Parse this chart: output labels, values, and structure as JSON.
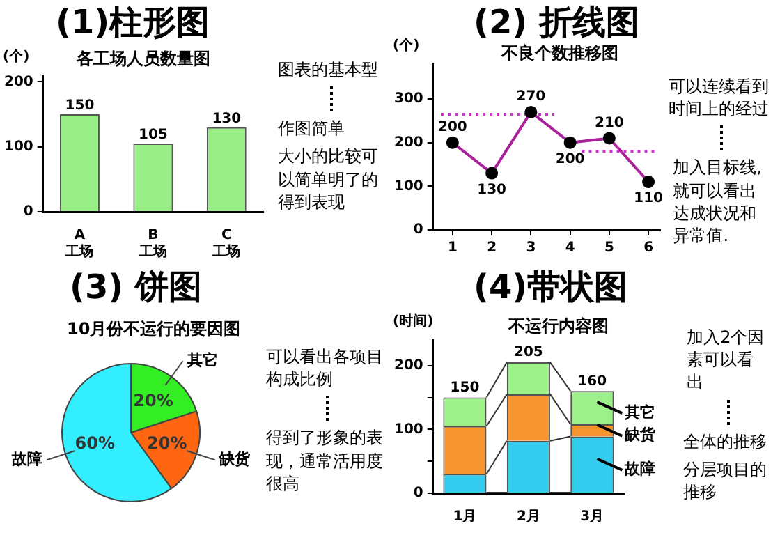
{
  "chart_data": [
    {
      "type": "bar",
      "title": "(1)柱形图",
      "subtitle": "各工场人员数量图",
      "ylabel": "(个)",
      "categories": [
        "A\n工场",
        "B\n工场",
        "C\n工场"
      ],
      "values": [
        150,
        105,
        130
      ],
      "color": "#99ee88",
      "ylim": [
        0,
        210
      ],
      "yticks": [
        0,
        100,
        200
      ],
      "data_labels": true,
      "annotations": [
        "图表的基本型",
        "作图简单",
        "大小的比较可以简单明了的得到表现"
      ]
    },
    {
      "type": "line",
      "title": "(2) 折线图",
      "subtitle": "不良个数推移图",
      "ylabel": "(个)",
      "xlim": [
        0.5,
        6.3
      ],
      "xticks": [
        1,
        2,
        3,
        4,
        5,
        6
      ],
      "ylim": [
        0,
        380
      ],
      "yticks": [
        0,
        100,
        200,
        300
      ],
      "series": [
        {
          "color": "#aa2299",
          "x": [
            1,
            2,
            3,
            4,
            5,
            6
          ],
          "values": [
            200,
            130,
            270,
            200,
            210,
            110
          ],
          "value_labels": [
            "200",
            "130",
            "270",
            "200",
            "210",
            "110"
          ],
          "marker": "circle",
          "line_style": "solid"
        },
        {
          "color": "#cc33cc",
          "x": [
            0.7,
            3.6
          ],
          "values": [
            265,
            265
          ],
          "marker": "none",
          "line_style": "dotted"
        },
        {
          "color": "#cc33cc",
          "x": [
            4.3,
            6.2
          ],
          "values": [
            180,
            180
          ],
          "marker": "none",
          "line_style": "dotted"
        }
      ],
      "annotations": [
        "可以连续看到时间上的经过",
        "加入目标线,就可以看出达成状况和异常值."
      ]
    },
    {
      "type": "pie",
      "title": "(3) 饼图",
      "subtitle": "10月份不运行的要因图",
      "categories": [
        "其它",
        "缺货",
        "故障"
      ],
      "values": [
        20,
        20,
        60
      ],
      "colors": [
        "#33ee22",
        "#ff6611",
        "#33eeff"
      ],
      "value_labels": [
        "20%",
        "20%",
        "60%"
      ],
      "annotations": [
        "可以看出各项目构成比例",
        "得到了形象的表现，通常活用度很高"
      ]
    },
    {
      "type": "bar",
      "stacked": true,
      "title": "(4)带状图",
      "subtitle": "不运行内容图",
      "ylabel": "(时间)",
      "categories": [
        "1月",
        "2月",
        "3月"
      ],
      "ylim": [
        0,
        240
      ],
      "yticks": [
        0,
        {
          "value": 50,
          "label": null
        },
        100,
        {
          "value": 150,
          "label": null
        },
        200
      ],
      "totals": [
        "150",
        "205",
        "160"
      ],
      "series": [
        {
          "name": "故障",
          "color": "#33ccee",
          "values": [
            30,
            82,
            89
          ]
        },
        {
          "name": "缺货",
          "color": "#f7962f",
          "values": [
            75,
            73,
            19
          ]
        },
        {
          "name": "其它",
          "color": "#9ef08a",
          "values": [
            45,
            50,
            52
          ]
        }
      ],
      "annotations": [
        "加入2个因素可以看出",
        "全体的推移",
        "分层项目的推移"
      ]
    }
  ]
}
